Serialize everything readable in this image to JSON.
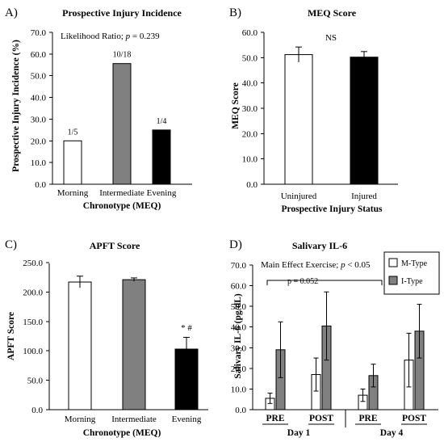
{
  "panels": {
    "a": {
      "label": "A)"
    },
    "b": {
      "label": "B)"
    },
    "c": {
      "label": "C)"
    },
    "d": {
      "label": "D)"
    }
  },
  "chart_data": [
    {
      "id": "A",
      "type": "bar",
      "title": "Prospective Injury Incidence",
      "xlabel": "Chronotype (MEQ)",
      "ylabel": "Prospective Injury Incidence (%)",
      "ylim": [
        0,
        70
      ],
      "yticks": [
        "0.0",
        "10.0",
        "20.0",
        "30.0",
        "40.0",
        "50.0",
        "60.0",
        "70.0"
      ],
      "categories": [
        "Morning",
        "Intermediate",
        "Evening"
      ],
      "values": [
        20.0,
        55.6,
        25.0
      ],
      "bar_labels": [
        "1/5",
        "10/18",
        "1/4"
      ],
      "colors": [
        "#ffffff",
        "#808080",
        "#000000"
      ],
      "annotation": {
        "prefix": "Likelihood Ratio; ",
        "p_symbol": "p",
        "suffix": " = 0.239"
      }
    },
    {
      "id": "B",
      "type": "bar",
      "title": "MEQ Score",
      "xlabel": "Prospective Injury Status",
      "ylabel": "MEQ Score",
      "ylim": [
        0,
        60
      ],
      "yticks": [
        "0.0",
        "10.0",
        "20.0",
        "30.0",
        "40.0",
        "50.0",
        "60.0"
      ],
      "categories": [
        "Uninjured",
        "Injured"
      ],
      "values": [
        51.2,
        50.2
      ],
      "errors": [
        3.0,
        2.2
      ],
      "colors": [
        "#ffffff",
        "#000000"
      ],
      "annotation": "NS"
    },
    {
      "id": "C",
      "type": "bar",
      "title": "APFT Score",
      "xlabel": "Chronotype (MEQ)",
      "ylabel": "APFT Score",
      "ylim": [
        0,
        250
      ],
      "yticks": [
        "0.0",
        "50.0",
        "100.0",
        "150.0",
        "200.0",
        "250.0"
      ],
      "categories": [
        "Morning",
        "Intermediate",
        "Evening"
      ],
      "values": [
        217,
        221,
        103
      ],
      "errors": [
        10,
        3,
        20
      ],
      "colors": [
        "#ffffff",
        "#808080",
        "#000000"
      ],
      "significance": {
        "category": "Evening",
        "text": "* #"
      }
    },
    {
      "id": "D",
      "type": "bar",
      "title": "Salivary IL-6",
      "xlabel": "",
      "ylabel": "Salivary IL-6 (pg/dL)",
      "ylim": [
        0,
        70
      ],
      "yticks": [
        "0.0",
        "10.0",
        "20.0",
        "30.0",
        "40.0",
        "50.0",
        "60.0",
        "70.0"
      ],
      "categories": [
        "PRE",
        "POST",
        "PRE",
        "POST"
      ],
      "groups": [
        "Day 1",
        "Day 4"
      ],
      "series": [
        {
          "name": "M-Type",
          "color": "#ffffff",
          "values": [
            5.5,
            17.0,
            7.0,
            24.0
          ],
          "errors": [
            2.5,
            8.0,
            3.0,
            13.0
          ]
        },
        {
          "name": "I-Type",
          "color": "#808080",
          "values": [
            29.0,
            40.5,
            16.5,
            38.0
          ],
          "errors": [
            13.5,
            16.5,
            5.5,
            13.0
          ]
        }
      ],
      "annotation": {
        "prefix": "Main Effect Exercise; ",
        "p_symbol": "p",
        "suffix": " < 0.05"
      },
      "bracket_label": "p = 0.052",
      "legend_position": "top-right"
    }
  ]
}
